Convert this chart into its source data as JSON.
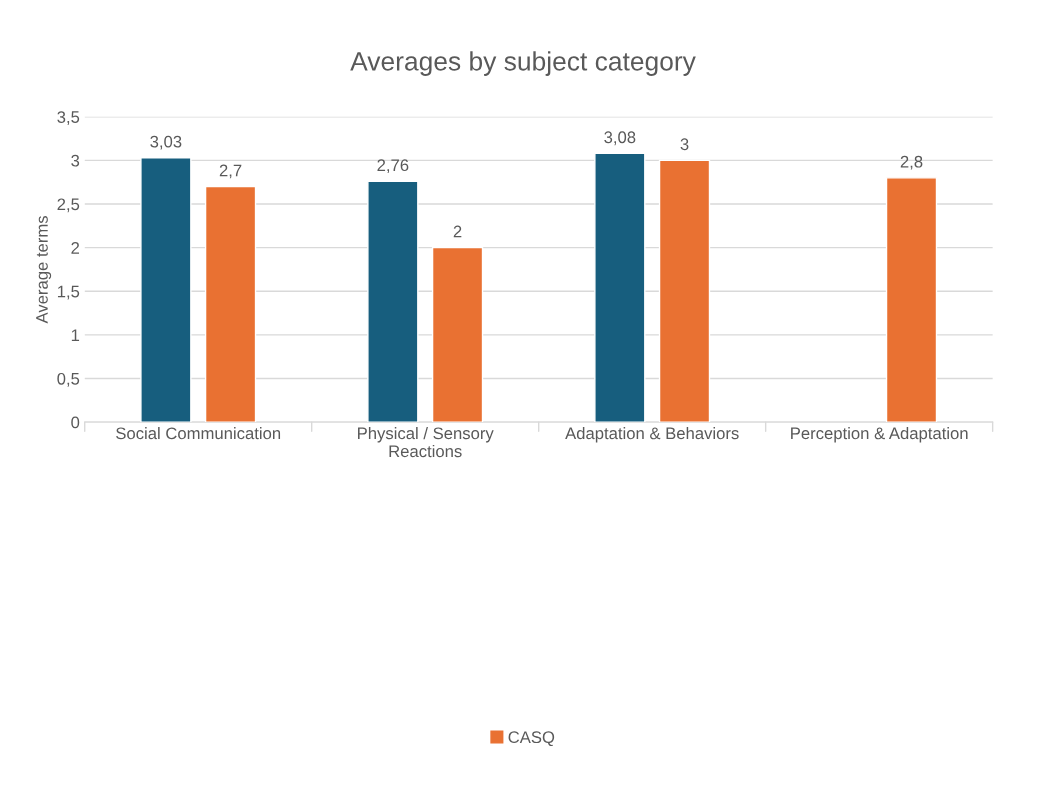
{
  "chart_data": {
    "type": "bar",
    "title": "Averages by subject category",
    "ylabel": "Average terms",
    "categories": [
      "Social Communication",
      "Physical / Sensory\nReactions",
      "Adaptation & Behaviors",
      "Perception & Adaptation"
    ],
    "series": [
      {
        "color": "#175e7e",
        "values": [
          3.03,
          2.76,
          3.08,
          null
        ],
        "value_labels": [
          "3,03",
          "2,76",
          "3,08",
          null
        ]
      },
      {
        "name": "CASQ",
        "color": "#e97132",
        "values": [
          2.7,
          2,
          3,
          2.8
        ],
        "value_labels": [
          "2,7",
          "2",
          "3",
          "2,8"
        ]
      }
    ],
    "ylim": [
      0,
      3.5
    ],
    "yticks": [
      0,
      {
        "value": 0.5,
        "label": "0,5"
      },
      1,
      {
        "value": 1.5,
        "label": "1,5"
      },
      2,
      {
        "value": 2.5,
        "label": "2,5"
      },
      3,
      {
        "value": 3.5,
        "label": "3,5"
      }
    ],
    "grid": "y",
    "legend": "bottom"
  }
}
